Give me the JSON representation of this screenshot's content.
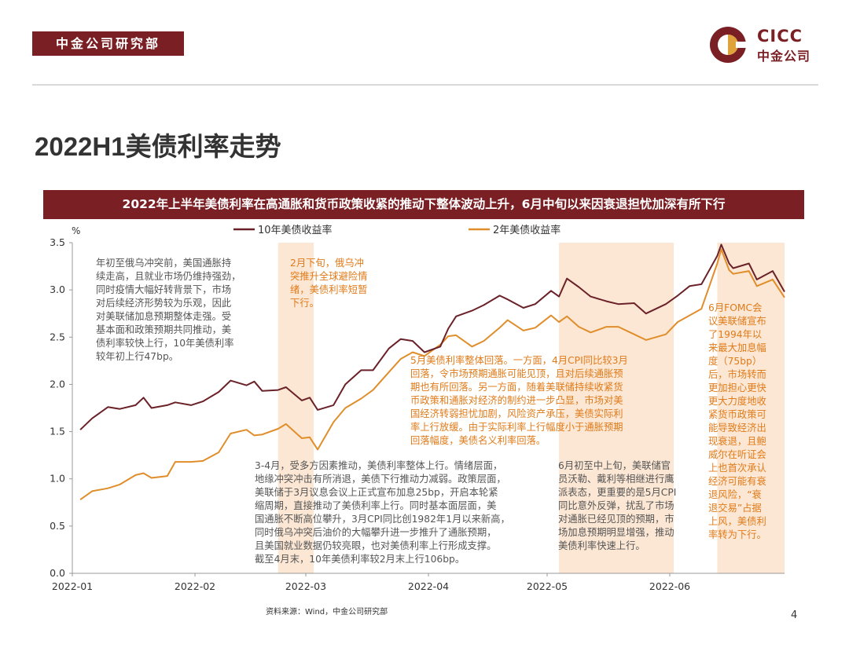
{
  "header": {
    "brand_tag": "中金公司研究部",
    "logo_en": "CICC",
    "logo_cn": "中金公司"
  },
  "title": "2022H1美债利率走势",
  "subtitle": "2022年上半年美债利率在高通胀和货币政策收紧的推动下整体波动上升，6月中旬以来因衰退担忧加深有所下行",
  "chart_data": {
    "type": "line",
    "ylabel": "%",
    "ylim": [
      0.0,
      3.5
    ],
    "yticks": [
      "0.0",
      "0.5",
      "1.0",
      "1.5",
      "2.0",
      "2.5",
      "3.0",
      "3.5"
    ],
    "xlim": [
      "2022-01-01",
      "2022-06-30"
    ],
    "xticks": [
      "2022-01",
      "2022-02",
      "2022-03",
      "2022-04",
      "2022-05",
      "2022-06"
    ],
    "grid": false,
    "legend": "top",
    "highlight_periods": [
      [
        "2022-02-22",
        "2022-03-03"
      ],
      [
        "2022-05-04",
        "2022-06-02"
      ],
      [
        "2022-06-13",
        "2022-06-30"
      ]
    ],
    "series": [
      {
        "name": "10年美债收益率",
        "color": "#6b2128",
        "x": [
          "2022-01-03",
          "2022-01-06",
          "2022-01-10",
          "2022-01-13",
          "2022-01-17",
          "2022-01-19",
          "2022-01-21",
          "2022-01-25",
          "2022-01-27",
          "2022-01-31",
          "2022-02-03",
          "2022-02-07",
          "2022-02-10",
          "2022-02-14",
          "2022-02-16",
          "2022-02-18",
          "2022-02-22",
          "2022-02-24",
          "2022-02-28",
          "2022-03-02",
          "2022-03-04",
          "2022-03-08",
          "2022-03-11",
          "2022-03-15",
          "2022-03-18",
          "2022-03-22",
          "2022-03-25",
          "2022-03-28",
          "2022-03-31",
          "2022-04-04",
          "2022-04-06",
          "2022-04-08",
          "2022-04-12",
          "2022-04-15",
          "2022-04-19",
          "2022-04-21",
          "2022-04-25",
          "2022-04-28",
          "2022-05-02",
          "2022-05-04",
          "2022-05-06",
          "2022-05-09",
          "2022-05-12",
          "2022-05-16",
          "2022-05-19",
          "2022-05-23",
          "2022-05-26",
          "2022-05-31",
          "2022-06-03",
          "2022-06-06",
          "2022-06-09",
          "2022-06-13",
          "2022-06-14",
          "2022-06-16",
          "2022-06-17",
          "2022-06-21",
          "2022-06-23",
          "2022-06-27",
          "2022-06-30"
        ],
        "values": [
          1.52,
          1.64,
          1.76,
          1.74,
          1.78,
          1.86,
          1.75,
          1.78,
          1.81,
          1.78,
          1.82,
          1.92,
          2.04,
          1.99,
          2.03,
          1.93,
          1.94,
          1.97,
          1.83,
          1.86,
          1.73,
          1.78,
          2.0,
          2.15,
          2.15,
          2.38,
          2.48,
          2.46,
          2.34,
          2.4,
          2.59,
          2.72,
          2.78,
          2.84,
          2.94,
          2.9,
          2.81,
          2.85,
          2.99,
          2.93,
          3.12,
          3.03,
          2.93,
          2.88,
          2.85,
          2.86,
          2.75,
          2.85,
          2.94,
          3.04,
          3.06,
          3.36,
          3.48,
          3.28,
          3.23,
          3.28,
          3.11,
          3.2,
          2.98
        ]
      },
      {
        "name": "2年美债收益率",
        "color": "#e08e2b",
        "x": [
          "2022-01-03",
          "2022-01-06",
          "2022-01-10",
          "2022-01-13",
          "2022-01-17",
          "2022-01-19",
          "2022-01-21",
          "2022-01-25",
          "2022-01-27",
          "2022-01-31",
          "2022-02-03",
          "2022-02-07",
          "2022-02-10",
          "2022-02-14",
          "2022-02-16",
          "2022-02-18",
          "2022-02-22",
          "2022-02-24",
          "2022-02-28",
          "2022-03-02",
          "2022-03-04",
          "2022-03-08",
          "2022-03-11",
          "2022-03-15",
          "2022-03-18",
          "2022-03-22",
          "2022-03-25",
          "2022-03-28",
          "2022-03-31",
          "2022-04-04",
          "2022-04-06",
          "2022-04-08",
          "2022-04-12",
          "2022-04-15",
          "2022-04-19",
          "2022-04-21",
          "2022-04-25",
          "2022-04-28",
          "2022-05-02",
          "2022-05-04",
          "2022-05-06",
          "2022-05-09",
          "2022-05-12",
          "2022-05-16",
          "2022-05-19",
          "2022-05-23",
          "2022-05-26",
          "2022-05-31",
          "2022-06-03",
          "2022-06-06",
          "2022-06-09",
          "2022-06-13",
          "2022-06-14",
          "2022-06-16",
          "2022-06-17",
          "2022-06-21",
          "2022-06-23",
          "2022-06-27",
          "2022-06-30"
        ],
        "values": [
          0.78,
          0.87,
          0.9,
          0.94,
          1.04,
          1.06,
          1.01,
          1.03,
          1.18,
          1.18,
          1.19,
          1.28,
          1.48,
          1.52,
          1.46,
          1.47,
          1.53,
          1.58,
          1.43,
          1.44,
          1.31,
          1.6,
          1.75,
          1.85,
          1.94,
          2.13,
          2.27,
          2.34,
          2.3,
          2.42,
          2.51,
          2.52,
          2.4,
          2.46,
          2.6,
          2.68,
          2.57,
          2.6,
          2.73,
          2.66,
          2.72,
          2.61,
          2.55,
          2.61,
          2.61,
          2.53,
          2.47,
          2.53,
          2.66,
          2.73,
          2.8,
          3.28,
          3.43,
          3.21,
          3.17,
          3.2,
          3.04,
          3.11,
          2.92
        ]
      }
    ],
    "annotations": [
      "年初至俄乌冲突前，美国通胀持\n续走高，且就业市场仍维持强劲，\n同时疫情大幅好转背景下，市场\n对后续经济形势较为乐观，因此\n对美联储加息预期整体走强。受\n基本面和政策预期共同推动，美\n债利率较快上行，10年美债利率\n较年初上行47bp。",
      "2月下旬，俄乌冲\n突推升全球避险情\n绪，美债利率短暂\n下行。",
      "5月美债利率整体回落。一方面，4月CPI同比较3月\n回落，令市场预期通胀可能见顶，且对后续通胀预\n期也有所回落。另一方面，随着美联储持续收紧货\n币政策和通胀对经济的制约进一步凸显，市场对美\n国经济转弱担忧加剧，风险资产承压，美债实际利\n率上行放缓。由于实际利率上行幅度小于通胀预期\n回落幅度，美债名义利率回落。",
      "3-4月，受多方因素推动，美债利率整体上行。情绪层面，\n地缘冲突冲击有所消退，美债下行推动力减弱。政策层面，\n美联储于3月议息会议上正式宣布加息25bp，开启本轮紧\n缩周期，直接推动了美债利率上行。同时基本面层面，美\n国通胀不断高位攀升，3月CPI同比创1982年1月以来新高，\n同时俄乌冲突后油价的大幅攀升进一步推升了通胀预期，\n且美国就业数据仍较亮眼，也对美债利率上行形成支撑。\n截至4月末，10年美债利率较2月末上行106bp。",
      "6月初至中上旬，美联储官\n员沃勒、戴利等相继进行鹰\n派表态，更重要的是5月CPI\n同比意外反弹，扰乱了市场\n对通胀已经见顶的预期，市\n场加息预期明显增强，推动\n美债利率快速上行。",
      "6月FOMC会\n议美联储宣布\n了1994年以\n来最大加息幅\n度（75bp）\n后，市场转而\n更加担心更快\n更大力度地收\n紧货币政策可\n能导致经济出\n现衰退，且鲍\n威尔在听证会\n上也首次承认\n经济可能有衰\n退风险，“衰\n退交易”占据\n上风，美债利\n率转为下行。"
    ]
  },
  "footer": {
    "source": "资料来源：Wind，中金公司研究部",
    "page_number": "4"
  }
}
